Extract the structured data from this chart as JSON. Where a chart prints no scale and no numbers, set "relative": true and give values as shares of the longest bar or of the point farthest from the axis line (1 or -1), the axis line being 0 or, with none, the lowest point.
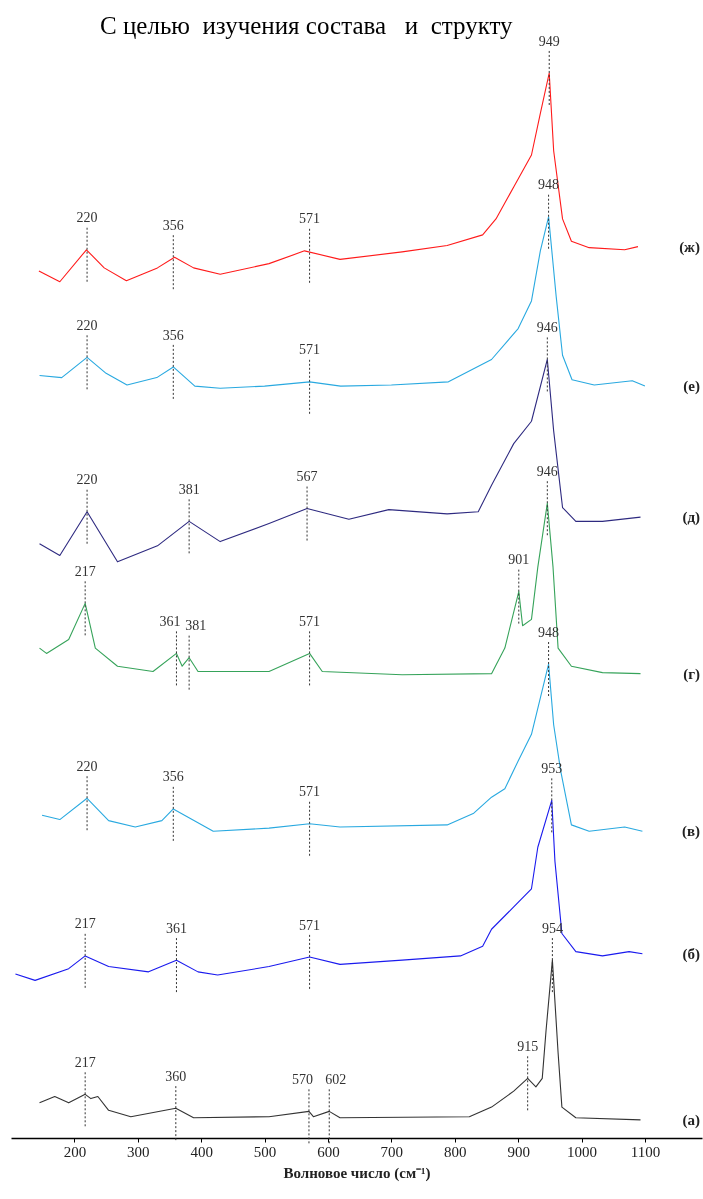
{
  "chart_data": {
    "type": "line",
    "relative": true,
    "xlabel": "Волновое число (см⁻¹)",
    "xlim": [
      100,
      1190
    ],
    "xticks": [
      200,
      300,
      400,
      500,
      600,
      700,
      800,
      900,
      1000,
      1100
    ],
    "tick_labels": "x",
    "grid": false,
    "legend": false,
    "annotations": [
      "С целью  изучения состава   и  структу",
      {
        "text": "949",
        "x": 949,
        "y": 1.0
      },
      {
        "text": "220",
        "x": 220,
        "y": 0.834
      },
      {
        "text": "356",
        "x": 356,
        "y": 0.827
      },
      {
        "text": "571",
        "x": 571,
        "y": 0.833
      },
      {
        "text": "948",
        "x": 948,
        "y": 0.865
      },
      {
        "text": "220",
        "x": 220,
        "y": 0.733
      },
      {
        "text": "356",
        "x": 356,
        "y": 0.724
      },
      {
        "text": "571",
        "x": 571,
        "y": 0.71
      },
      {
        "text": "946",
        "x": 946,
        "y": 0.731
      },
      {
        "text": "220",
        "x": 220,
        "y": 0.588
      },
      {
        "text": "381",
        "x": 381,
        "y": 0.579
      },
      {
        "text": "567",
        "x": 567,
        "y": 0.591
      },
      {
        "text": "946",
        "x": 946,
        "y": 0.596
      },
      {
        "text": "901",
        "x": 901,
        "y": 0.513
      },
      {
        "text": "217",
        "x": 217,
        "y": 0.502
      },
      {
        "text": "361",
        "x": 361,
        "y": 0.455
      },
      {
        "text": "381",
        "x": 381,
        "y": 0.451
      },
      {
        "text": "571",
        "x": 571,
        "y": 0.455
      },
      {
        "text": "948",
        "x": 948,
        "y": 0.445
      },
      {
        "text": "220",
        "x": 220,
        "y": 0.319
      },
      {
        "text": "356",
        "x": 356,
        "y": 0.309
      },
      {
        "text": "571",
        "x": 571,
        "y": 0.295
      },
      {
        "text": "953",
        "x": 953,
        "y": 0.317
      },
      {
        "text": "217",
        "x": 217,
        "y": 0.171
      },
      {
        "text": "361",
        "x": 361,
        "y": 0.167
      },
      {
        "text": "571",
        "x": 571,
        "y": 0.17
      },
      {
        "text": "954",
        "x": 954,
        "y": 0.167
      },
      {
        "text": "915",
        "x": 915,
        "y": 0.056
      },
      {
        "text": "217",
        "x": 217,
        "y": 0.041
      },
      {
        "text": "360",
        "x": 360,
        "y": 0.028
      },
      {
        "text": "570",
        "x": 570,
        "y": 0.025
      },
      {
        "text": "602",
        "x": 602,
        "y": 0.025
      }
    ],
    "series": [
      {
        "name": "(ж)",
        "color": "#ff1a1a",
        "x": [
          144,
          177,
          219,
          247,
          282,
          331,
          358,
          388,
          430,
          507,
          563,
          619,
          717,
          788,
          844,
          865,
          893,
          921,
          935,
          949,
          956,
          970,
          984,
          1012,
          1068,
          1089
        ],
        "values": [
          0.814,
          0.804,
          0.834,
          0.817,
          0.805,
          0.817,
          0.827,
          0.817,
          0.811,
          0.821,
          0.833,
          0.825,
          0.832,
          0.838,
          0.848,
          0.863,
          0.893,
          0.923,
          0.962,
          1.0,
          0.927,
          0.863,
          0.842,
          0.836,
          0.834,
          0.837
        ]
      },
      {
        "name": "(е)",
        "color": "#29a9e0",
        "x": [
          145,
          180,
          220,
          250,
          283,
          330,
          356,
          390,
          430,
          500,
          571,
          620,
          700,
          790,
          858,
          900,
          921,
          935,
          948,
          960,
          970,
          985,
          1020,
          1080,
          1100
        ],
        "values": [
          0.716,
          0.714,
          0.733,
          0.718,
          0.707,
          0.714,
          0.724,
          0.706,
          0.704,
          0.706,
          0.71,
          0.706,
          0.707,
          0.71,
          0.731,
          0.76,
          0.786,
          0.833,
          0.865,
          0.79,
          0.735,
          0.712,
          0.707,
          0.711,
          0.706
        ]
      },
      {
        "name": "(д)",
        "color": "#2e2a80",
        "x": [
          145,
          177,
          220,
          268,
          331,
          381,
          430,
          507,
          567,
          633,
          696,
          788,
          837,
          858,
          893,
          921,
          946,
          956,
          970,
          991,
          1033,
          1093
        ],
        "values": [
          0.558,
          0.547,
          0.588,
          0.541,
          0.556,
          0.579,
          0.56,
          0.577,
          0.591,
          0.581,
          0.59,
          0.586,
          0.588,
          0.613,
          0.652,
          0.673,
          0.731,
          0.664,
          0.592,
          0.579,
          0.579,
          0.583
        ]
      },
      {
        "name": "(г)",
        "color": "#36a35a",
        "x": [
          145,
          156,
          191,
          217,
          233,
          268,
          324,
          361,
          370,
          381,
          395,
          507,
          571,
          591,
          717,
          858,
          879,
          901,
          907,
          921,
          931,
          946,
          955,
          963,
          984,
          1033,
          1093
        ],
        "values": [
          0.46,
          0.455,
          0.468,
          0.502,
          0.46,
          0.443,
          0.438,
          0.455,
          0.443,
          0.451,
          0.438,
          0.438,
          0.455,
          0.438,
          0.435,
          0.436,
          0.46,
          0.513,
          0.481,
          0.487,
          0.536,
          0.596,
          0.536,
          0.46,
          0.443,
          0.437,
          0.436
        ]
      },
      {
        "name": "(в)",
        "color": "#29a9e0",
        "x": [
          149,
          177,
          220,
          254,
          296,
          338,
          356,
          419,
          507,
          571,
          619,
          788,
          830,
          858,
          879,
          900,
          921,
          948,
          956,
          967,
          984,
          1012,
          1068,
          1096
        ],
        "values": [
          0.303,
          0.299,
          0.319,
          0.298,
          0.292,
          0.298,
          0.309,
          0.288,
          0.291,
          0.295,
          0.292,
          0.294,
          0.305,
          0.32,
          0.328,
          0.354,
          0.379,
          0.445,
          0.388,
          0.345,
          0.294,
          0.288,
          0.292,
          0.288
        ]
      },
      {
        "name": "(б)",
        "color": "#1a1aee",
        "x": [
          107,
          138,
          191,
          217,
          254,
          317,
          361,
          395,
          426,
          507,
          571,
          619,
          717,
          809,
          844,
          858,
          893,
          921,
          931,
          953,
          958,
          969,
          991,
          1033,
          1075,
          1096
        ],
        "values": [
          0.154,
          0.148,
          0.159,
          0.171,
          0.161,
          0.156,
          0.167,
          0.156,
          0.153,
          0.161,
          0.17,
          0.163,
          0.167,
          0.171,
          0.18,
          0.196,
          0.217,
          0.234,
          0.273,
          0.317,
          0.26,
          0.192,
          0.175,
          0.171,
          0.175,
          0.173
        ]
      },
      {
        "name": "(а)",
        "color": "#333333",
        "x": [
          145,
          169,
          191,
          217,
          226,
          237,
          254,
          289,
          360,
          388,
          507,
          570,
          577,
          602,
          619,
          823,
          858,
          893,
          915,
          928,
          938,
          944,
          954,
          963,
          969,
          991,
          1093
        ],
        "values": [
          0.033,
          0.039,
          0.033,
          0.041,
          0.037,
          0.039,
          0.026,
          0.02,
          0.028,
          0.019,
          0.02,
          0.025,
          0.02,
          0.025,
          0.019,
          0.02,
          0.029,
          0.044,
          0.056,
          0.048,
          0.056,
          0.101,
          0.167,
          0.08,
          0.029,
          0.019,
          0.017
        ]
      }
    ]
  }
}
